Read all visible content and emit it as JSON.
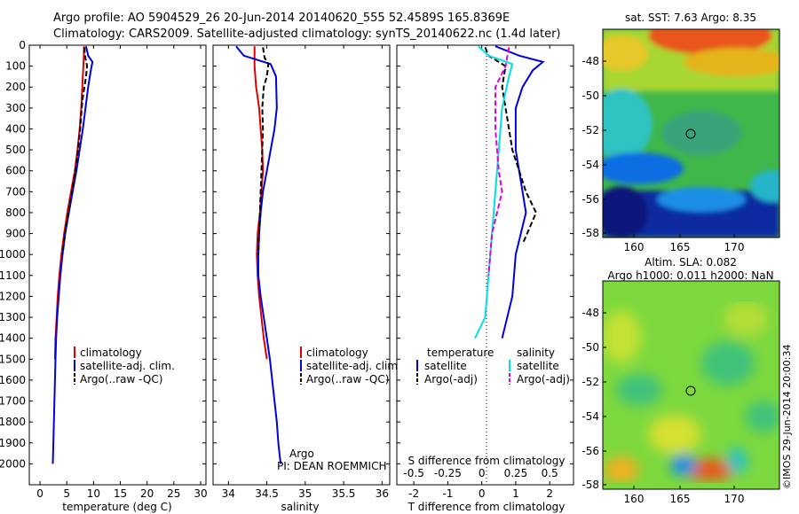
{
  "header": {
    "line1": "Argo profile: AO 5904529_26 20-Jun-2014 20140620_555 52.4589S 165.8369E",
    "line2": "Climatology: CARS2009. Satellite-adjusted climatology: synTS_20140622.nc (1.4d later)"
  },
  "chart_data": [
    {
      "type": "line",
      "panel": "temperature",
      "xlabel": "temperature (deg C)",
      "xlim": [
        -2,
        31
      ],
      "ylim": [
        2100,
        0
      ],
      "xticks": [
        0,
        5,
        10,
        15,
        20,
        25,
        30
      ],
      "yticks": [
        0,
        100,
        200,
        300,
        400,
        500,
        600,
        700,
        800,
        900,
        1000,
        1100,
        1200,
        1300,
        1400,
        1500,
        1600,
        1700,
        1800,
        1900,
        2000
      ],
      "legend": [
        "climatology",
        "satellite-adj. clim.",
        "Argo(..raw -QC)"
      ],
      "series": [
        {
          "name": "climatology",
          "color": "#e00000",
          "dash": "",
          "points": [
            [
              8.2,
              5
            ],
            [
              8.2,
              50
            ],
            [
              8.1,
              100
            ],
            [
              7.9,
              200
            ],
            [
              7.7,
              300
            ],
            [
              7.4,
              400
            ],
            [
              7.0,
              500
            ],
            [
              6.5,
              600
            ],
            [
              5.8,
              700
            ],
            [
              5.1,
              800
            ],
            [
              4.5,
              900
            ],
            [
              4.0,
              1000
            ],
            [
              3.6,
              1100
            ],
            [
              3.3,
              1200
            ],
            [
              3.1,
              1300
            ],
            [
              2.9,
              1400
            ],
            [
              2.8,
              1500
            ]
          ]
        },
        {
          "name": "satellite-adj. clim.",
          "color": "#0000e0",
          "dash": "",
          "points": [
            [
              8.6,
              5
            ],
            [
              9.0,
              50
            ],
            [
              9.8,
              80
            ],
            [
              9.5,
              120
            ],
            [
              9.0,
              200
            ],
            [
              8.5,
              300
            ],
            [
              8.0,
              400
            ],
            [
              7.4,
              500
            ],
            [
              6.8,
              600
            ],
            [
              6.1,
              700
            ],
            [
              5.4,
              800
            ],
            [
              4.7,
              900
            ],
            [
              4.2,
              1000
            ],
            [
              3.8,
              1100
            ],
            [
              3.5,
              1200
            ],
            [
              3.2,
              1300
            ],
            [
              3.0,
              1400
            ],
            [
              2.9,
              1500
            ],
            [
              2.8,
              1600
            ],
            [
              2.7,
              1700
            ],
            [
              2.6,
              1800
            ],
            [
              2.5,
              1900
            ],
            [
              2.4,
              2000
            ]
          ]
        },
        {
          "name": "Argo(..raw -QC)",
          "color": "#000000",
          "dash": "6,3",
          "points": [
            [
              8.3,
              10
            ],
            [
              8.4,
              50
            ],
            [
              8.8,
              100
            ],
            [
              8.6,
              150
            ],
            [
              8.3,
              200
            ],
            [
              8.0,
              250
            ],
            [
              7.8,
              300
            ],
            [
              7.5,
              400
            ],
            [
              7.1,
              500
            ],
            [
              6.6,
              600
            ],
            [
              6.0,
              700
            ],
            [
              5.3,
              800
            ],
            [
              4.7,
              900
            ],
            [
              4.2,
              1000
            ]
          ]
        }
      ]
    },
    {
      "type": "line",
      "panel": "salinity",
      "xlabel": "salinity",
      "xlim": [
        33.8,
        36.1
      ],
      "ylim": [
        2100,
        0
      ],
      "xticks": [
        34,
        34.5,
        35,
        35.5,
        36
      ],
      "legend": [
        "climatology",
        "satellite-adj. clim.",
        "Argo(..raw -QC)"
      ],
      "annotation": [
        "Argo",
        "PI: DEAN ROEMMICH"
      ],
      "series": [
        {
          "name": "climatology",
          "color": "#e00000",
          "dash": "",
          "points": [
            [
              34.34,
              5
            ],
            [
              34.34,
              100
            ],
            [
              34.36,
              200
            ],
            [
              34.4,
              300
            ],
            [
              34.42,
              400
            ],
            [
              34.44,
              500
            ],
            [
              34.45,
              600
            ],
            [
              34.43,
              700
            ],
            [
              34.41,
              800
            ],
            [
              34.38,
              900
            ],
            [
              34.37,
              1000
            ],
            [
              34.38,
              1100
            ],
            [
              34.4,
              1200
            ],
            [
              34.43,
              1300
            ],
            [
              34.46,
              1400
            ],
            [
              34.5,
              1500
            ]
          ]
        },
        {
          "name": "satellite-adj. clim.",
          "color": "#0000e0",
          "dash": "",
          "points": [
            [
              34.1,
              5
            ],
            [
              34.2,
              50
            ],
            [
              34.55,
              90
            ],
            [
              34.62,
              150
            ],
            [
              34.63,
              300
            ],
            [
              34.6,
              400
            ],
            [
              34.55,
              500
            ],
            [
              34.5,
              600
            ],
            [
              34.45,
              700
            ],
            [
              34.42,
              800
            ],
            [
              34.4,
              900
            ],
            [
              34.39,
              1000
            ],
            [
              34.39,
              1100
            ],
            [
              34.42,
              1200
            ],
            [
              34.46,
              1300
            ],
            [
              34.5,
              1400
            ],
            [
              34.54,
              1500
            ],
            [
              34.57,
              1600
            ],
            [
              34.6,
              1700
            ],
            [
              34.63,
              1800
            ],
            [
              34.65,
              1900
            ],
            [
              34.68,
              2000
            ]
          ]
        },
        {
          "name": "Argo(..raw -QC)",
          "color": "#000000",
          "dash": "6,3",
          "points": [
            [
              34.45,
              10
            ],
            [
              34.47,
              60
            ],
            [
              34.52,
              90
            ],
            [
              34.5,
              150
            ],
            [
              34.46,
              200
            ],
            [
              34.44,
              300
            ],
            [
              34.45,
              400
            ],
            [
              34.44,
              500
            ],
            [
              34.43,
              600
            ],
            [
              34.42,
              700
            ],
            [
              34.41,
              800
            ],
            [
              34.4,
              900
            ],
            [
              34.39,
              1000
            ]
          ]
        }
      ]
    },
    {
      "type": "line",
      "panel": "difference",
      "xlabel": "T difference from climatology",
      "xlabel2": "S difference from climatology",
      "xlim": [
        -2.5,
        2.7
      ],
      "ylim": [
        2100,
        0
      ],
      "xticks": [
        -2,
        -1,
        0,
        1,
        2
      ],
      "xticks_s": [
        -0.5,
        -0.25,
        0,
        0.25,
        0.5
      ],
      "legend": {
        "col1_title": "temperature",
        "col2_title": "salinity",
        "items": [
          "satellite",
          "Argo(-adj)",
          "satellite",
          "Argo(-adj)"
        ]
      },
      "series": [
        {
          "name": "T satellite",
          "color": "#0000e0",
          "dash": "",
          "points": [
            [
              0.4,
              5
            ],
            [
              1.1,
              50
            ],
            [
              1.8,
              80
            ],
            [
              1.5,
              120
            ],
            [
              1.2,
              200
            ],
            [
              1.0,
              300
            ],
            [
              1.0,
              500
            ],
            [
              1.2,
              700
            ],
            [
              1.3,
              800
            ],
            [
              1.0,
              1000
            ],
            [
              0.9,
              1200
            ],
            [
              0.6,
              1400
            ]
          ]
        },
        {
          "name": "T Argo(-adj)",
          "color": "#000000",
          "dash": "6,3",
          "points": [
            [
              0.1,
              10
            ],
            [
              0.2,
              50
            ],
            [
              0.7,
              100
            ],
            [
              0.6,
              200
            ],
            [
              0.7,
              300
            ],
            [
              0.9,
              500
            ],
            [
              1.3,
              700
            ],
            [
              1.6,
              800
            ],
            [
              1.2,
              950
            ]
          ]
        },
        {
          "name": "S satellite",
          "color": "#00e0e0",
          "dash": "",
          "points": [
            [
              -0.1,
              5
            ],
            [
              0.2,
              50
            ],
            [
              0.9,
              90
            ],
            [
              0.8,
              150
            ],
            [
              0.6,
              300
            ],
            [
              0.5,
              500
            ],
            [
              0.4,
              700
            ],
            [
              0.3,
              900
            ],
            [
              0.2,
              1100
            ],
            [
              0.1,
              1300
            ],
            [
              -0.2,
              1400
            ]
          ]
        },
        {
          "name": "S Argo(-adj)",
          "color": "#e000e0",
          "dash": "6,3",
          "points": [
            [
              0.8,
              10
            ],
            [
              0.7,
              100
            ],
            [
              0.4,
              200
            ],
            [
              0.4,
              400
            ],
            [
              0.5,
              600
            ],
            [
              0.6,
              700
            ],
            [
              0.3,
              900
            ],
            [
              0.2,
              1100
            ]
          ]
        }
      ]
    }
  ],
  "maps": [
    {
      "title": "sat. SST: 7.63 Argo: 8.35",
      "yticks": [
        "-48",
        "-50",
        "-52",
        "-54",
        "-56",
        "-58"
      ],
      "xticks": [
        "160",
        "165",
        "170"
      ]
    },
    {
      "title_line1": "Altim. SLA: 0.082",
      "title_line2": "Argo h1000: 0.011 h2000: NaN",
      "yticks": [
        "-48",
        "-50",
        "-52",
        "-54",
        "-56",
        "-58"
      ],
      "xticks": [
        "160",
        "165",
        "170"
      ],
      "side_label": "©IMOS 29-Jun-2014 20:00:34"
    }
  ]
}
